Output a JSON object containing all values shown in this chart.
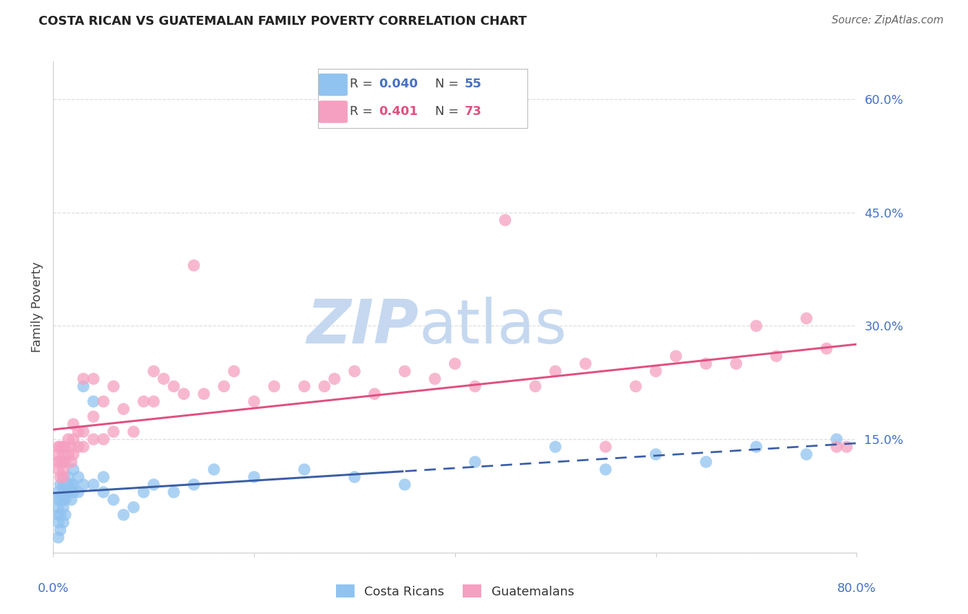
{
  "title": "COSTA RICAN VS GUATEMALAN FAMILY POVERTY CORRELATION CHART",
  "source": "Source: ZipAtlas.com",
  "ylabel": "Family Poverty",
  "xlim": [
    0.0,
    0.8
  ],
  "ylim": [
    0.0,
    0.65
  ],
  "yticks": [
    0.0,
    0.15,
    0.3,
    0.45,
    0.6
  ],
  "ytick_labels": [
    "",
    "15.0%",
    "30.0%",
    "45.0%",
    "60.0%"
  ],
  "blue_color": "#91C3F0",
  "pink_color": "#F5A0C0",
  "blue_line_color": "#3B5EA6",
  "pink_line_color": "#E05080",
  "watermark_zip_color": "#C5D8F0",
  "watermark_atlas_color": "#C5D8F0",
  "background_color": "#FFFFFF",
  "grid_color": "#DDDDDD",
  "axis_color": "#CCCCCC",
  "title_color": "#222222",
  "tick_color": "#4472C4",
  "legend_text_color": "#333333",
  "source_color": "#666666",
  "cr_line_solid_end": 0.35,
  "costa_rican_x": [
    0.005,
    0.005,
    0.005,
    0.005,
    0.005,
    0.005,
    0.007,
    0.007,
    0.007,
    0.007,
    0.01,
    0.01,
    0.01,
    0.01,
    0.01,
    0.01,
    0.012,
    0.012,
    0.012,
    0.015,
    0.015,
    0.015,
    0.018,
    0.018,
    0.02,
    0.02,
    0.02,
    0.025,
    0.025,
    0.03,
    0.03,
    0.04,
    0.04,
    0.05,
    0.05,
    0.06,
    0.07,
    0.08,
    0.09,
    0.1,
    0.12,
    0.14,
    0.16,
    0.2,
    0.25,
    0.3,
    0.35,
    0.42,
    0.5,
    0.55,
    0.6,
    0.65,
    0.7,
    0.75,
    0.78
  ],
  "costa_rican_y": [
    0.02,
    0.04,
    0.05,
    0.06,
    0.07,
    0.08,
    0.03,
    0.05,
    0.07,
    0.09,
    0.04,
    0.06,
    0.07,
    0.08,
    0.09,
    0.1,
    0.05,
    0.07,
    0.09,
    0.08,
    0.09,
    0.1,
    0.07,
    0.09,
    0.08,
    0.09,
    0.11,
    0.08,
    0.1,
    0.09,
    0.22,
    0.09,
    0.2,
    0.08,
    0.1,
    0.07,
    0.05,
    0.06,
    0.08,
    0.09,
    0.08,
    0.09,
    0.11,
    0.1,
    0.11,
    0.1,
    0.09,
    0.12,
    0.14,
    0.11,
    0.13,
    0.12,
    0.14,
    0.13,
    0.15
  ],
  "guatemalan_x": [
    0.005,
    0.005,
    0.005,
    0.005,
    0.007,
    0.007,
    0.007,
    0.01,
    0.01,
    0.01,
    0.01,
    0.01,
    0.012,
    0.012,
    0.015,
    0.015,
    0.018,
    0.018,
    0.02,
    0.02,
    0.02,
    0.025,
    0.025,
    0.03,
    0.03,
    0.03,
    0.04,
    0.04,
    0.04,
    0.05,
    0.05,
    0.06,
    0.06,
    0.07,
    0.08,
    0.09,
    0.1,
    0.1,
    0.11,
    0.12,
    0.13,
    0.14,
    0.15,
    0.17,
    0.18,
    0.2,
    0.22,
    0.25,
    0.27,
    0.28,
    0.3,
    0.32,
    0.35,
    0.38,
    0.4,
    0.42,
    0.45,
    0.48,
    0.5,
    0.53,
    0.55,
    0.58,
    0.6,
    0.62,
    0.65,
    0.68,
    0.7,
    0.72,
    0.75,
    0.77,
    0.78,
    0.79
  ],
  "guatemalan_y": [
    0.11,
    0.12,
    0.13,
    0.14,
    0.1,
    0.12,
    0.14,
    0.1,
    0.11,
    0.12,
    0.13,
    0.14,
    0.12,
    0.14,
    0.13,
    0.15,
    0.12,
    0.14,
    0.13,
    0.15,
    0.17,
    0.14,
    0.16,
    0.14,
    0.16,
    0.23,
    0.15,
    0.18,
    0.23,
    0.15,
    0.2,
    0.16,
    0.22,
    0.19,
    0.16,
    0.2,
    0.2,
    0.24,
    0.23,
    0.22,
    0.21,
    0.38,
    0.21,
    0.22,
    0.24,
    0.2,
    0.22,
    0.22,
    0.22,
    0.23,
    0.24,
    0.21,
    0.24,
    0.23,
    0.25,
    0.22,
    0.44,
    0.22,
    0.24,
    0.25,
    0.14,
    0.22,
    0.24,
    0.26,
    0.25,
    0.25,
    0.3,
    0.26,
    0.31,
    0.27,
    0.14,
    0.14
  ]
}
